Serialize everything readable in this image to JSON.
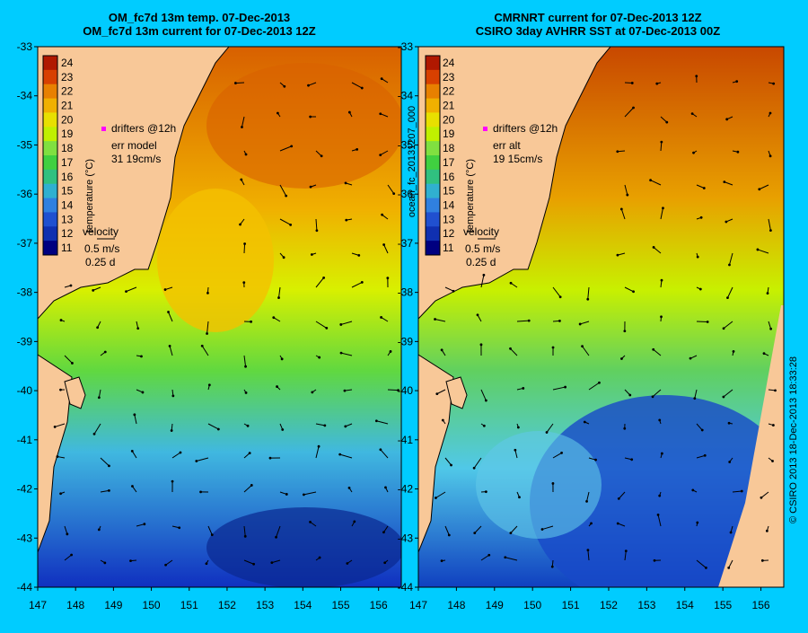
{
  "panels": [
    {
      "title_line1": "OM_fc7d 13m temp. 07-Dec-2013",
      "title_line2": "OM_fc7d 13m current for 07-Dec-2013 12Z",
      "drifters_label": "drifters @12h",
      "err_label": "err model",
      "err_values": "31 19cm/s",
      "velocity_label": "velocity",
      "velocity_scale": "0.5 m/s",
      "velocity_time": "0.25 d",
      "colorbar_label": "temperature (°C)"
    },
    {
      "title_line1": "CMRNRT current for 07-Dec-2013 12Z",
      "title_line2": "CSIRO 3day AVHRR SST at 07-Dec-2013 00Z",
      "drifters_label": "drifters @12h",
      "err_label": "err alt",
      "err_values": "19 15cm/s",
      "velocity_label": "velocity",
      "velocity_scale": "0.5 m/s",
      "velocity_time": "0.25 d",
      "colorbar_label": "temperature (°C)"
    }
  ],
  "y_ticks": [
    "-33",
    "-34",
    "-35",
    "-36",
    "-37",
    "-38",
    "-39",
    "-40",
    "-41",
    "-42",
    "-43",
    "-44"
  ],
  "x_ticks": [
    "147",
    "148",
    "149",
    "150",
    "151",
    "152",
    "153",
    "154",
    "155",
    "156"
  ],
  "colorbar_ticks": [
    "24",
    "23",
    "22",
    "21",
    "20",
    "19",
    "18",
    "17",
    "16",
    "15",
    "14",
    "13",
    "12",
    "11"
  ],
  "colorbar_colors": [
    "#b01800",
    "#d84000",
    "#e88000",
    "#f0b000",
    "#e8e000",
    "#c0f000",
    "#80e040",
    "#40d040",
    "#30c080",
    "#30b0d0",
    "#3080e0",
    "#2050d0",
    "#1030b0",
    "#000080"
  ],
  "side_label": "ocean_fc_20131207_000",
  "copyright": "© CSIRO 2013   18-Dec-2013 18:33:28",
  "colors": {
    "background": "#00ccff",
    "land": "#f8c898"
  }
}
